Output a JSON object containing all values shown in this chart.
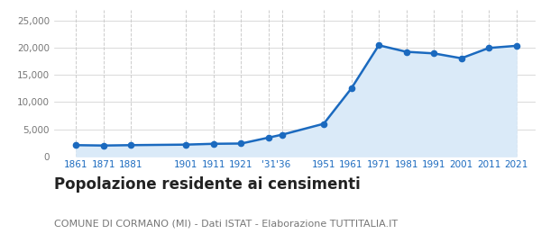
{
  "years": [
    1861,
    1871,
    1881,
    1901,
    1911,
    1921,
    1931,
    1936,
    1951,
    1961,
    1971,
    1981,
    1991,
    2001,
    2011,
    2021
  ],
  "population": [
    2050,
    1980,
    2050,
    2150,
    2300,
    2350,
    3450,
    4000,
    6000,
    12500,
    20500,
    19300,
    19000,
    18100,
    20000,
    20400
  ],
  "line_color": "#1b6abf",
  "fill_color": "#daeaf8",
  "marker_color": "#1b6abf",
  "background_color": "#ffffff",
  "grid_color": "#cccccc",
  "title": "Popolazione residente ai censimenti",
  "subtitle": "COMUNE DI CORMANO (MI) - Dati ISTAT - Elaborazione TUTTITALIA.IT",
  "title_fontsize": 12,
  "subtitle_fontsize": 8,
  "yticks": [
    0,
    5000,
    10000,
    15000,
    20000,
    25000
  ],
  "ylim": [
    0,
    27000
  ],
  "xlim": [
    1853,
    2028
  ]
}
